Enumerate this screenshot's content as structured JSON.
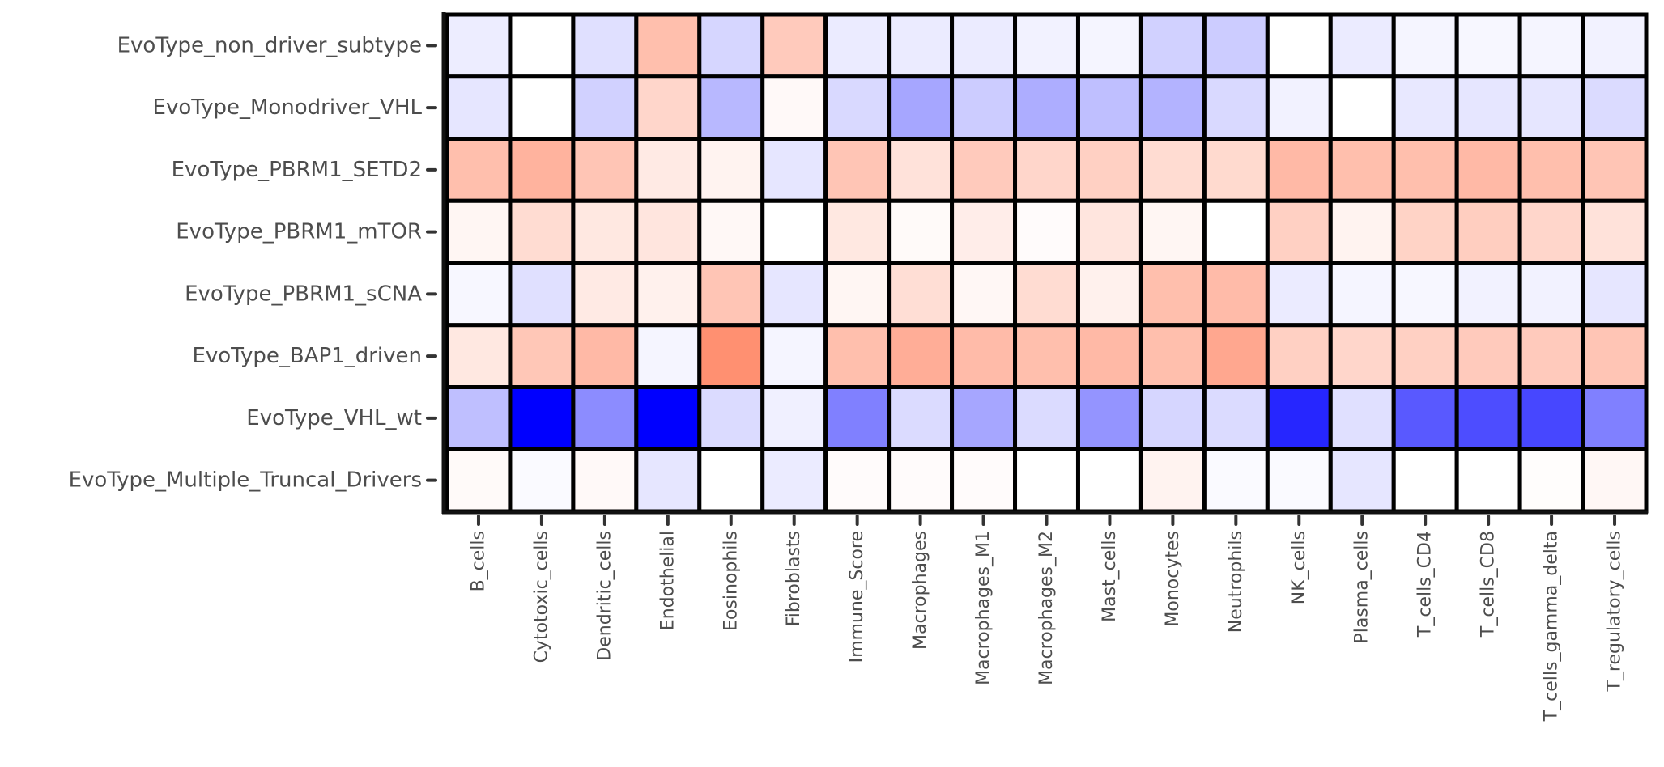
{
  "chart_data": {
    "type": "heatmap",
    "title": "",
    "xlabel": "",
    "ylabel": "",
    "legend": "none",
    "color_scale": {
      "negative": "#0000ff",
      "zero": "#ffffff",
      "positive": "#ff8a6a",
      "range": [
        -1,
        1
      ]
    },
    "rows": [
      "EvoType_non_driver_subtype",
      "EvoType_Monodriver_VHL",
      "EvoType_PBRM1_SETD2",
      "EvoType_PBRM1_mTOR",
      "EvoType_PBRM1_sCNA",
      "EvoType_BAP1_driven",
      "EvoType_VHL_wt",
      "EvoType_Multiple_Truncal_Drivers"
    ],
    "columns": [
      "B_cells",
      "Cytotoxic_cells",
      "Dendritic_cells",
      "Endothelial",
      "Eosinophils",
      "Fibroblasts",
      "Immune_Score",
      "Macrophages",
      "Macrophages_M1",
      "Macrophages_M2",
      "Mast_cells",
      "Monocytes",
      "Neutrophils",
      "NK_cells",
      "Plasma_cells",
      "T_cells_CD4",
      "T_cells_CD8",
      "T_cells_gamma_delta",
      "T_regulatory_cells"
    ],
    "values": [
      [
        -0.07,
        0.0,
        -0.12,
        0.55,
        -0.16,
        0.45,
        -0.08,
        -0.08,
        -0.08,
        -0.05,
        -0.04,
        -0.18,
        -0.2,
        0.0,
        -0.08,
        -0.04,
        -0.03,
        -0.04,
        -0.05
      ],
      [
        -0.1,
        0.0,
        -0.18,
        0.35,
        -0.28,
        0.05,
        -0.15,
        -0.35,
        -0.2,
        -0.32,
        -0.25,
        -0.3,
        -0.15,
        -0.05,
        0.0,
        -0.09,
        -0.1,
        -0.1,
        -0.14
      ],
      [
        0.55,
        0.65,
        0.5,
        0.18,
        0.1,
        -0.1,
        0.5,
        0.25,
        0.45,
        0.35,
        0.4,
        0.3,
        0.32,
        0.6,
        0.55,
        0.55,
        0.6,
        0.55,
        0.5
      ],
      [
        0.08,
        0.3,
        0.2,
        0.22,
        0.06,
        0.0,
        0.2,
        0.04,
        0.15,
        0.03,
        0.22,
        0.08,
        0.0,
        0.4,
        0.1,
        0.38,
        0.42,
        0.35,
        0.25
      ],
      [
        -0.03,
        -0.12,
        0.18,
        0.12,
        0.5,
        -0.1,
        0.08,
        0.28,
        0.07,
        0.3,
        0.12,
        0.55,
        0.58,
        -0.08,
        -0.04,
        -0.03,
        -0.05,
        -0.05,
        -0.1
      ],
      [
        0.2,
        0.48,
        0.6,
        -0.04,
        0.95,
        -0.04,
        0.55,
        0.7,
        0.58,
        0.55,
        0.6,
        0.55,
        0.75,
        0.4,
        0.35,
        0.4,
        0.45,
        0.45,
        0.5
      ],
      [
        -0.25,
        -1.0,
        -0.45,
        -1.0,
        -0.14,
        -0.06,
        -0.5,
        -0.14,
        -0.35,
        -0.14,
        -0.42,
        -0.16,
        -0.14,
        -0.85,
        -0.12,
        -0.65,
        -0.7,
        -0.72,
        -0.5
      ],
      [
        0.04,
        -0.02,
        0.05,
        -0.1,
        0.0,
        -0.08,
        0.03,
        0.03,
        0.03,
        0.0,
        0.0,
        0.1,
        -0.02,
        -0.02,
        -0.1,
        0.0,
        0.0,
        0.02,
        0.07
      ]
    ]
  }
}
